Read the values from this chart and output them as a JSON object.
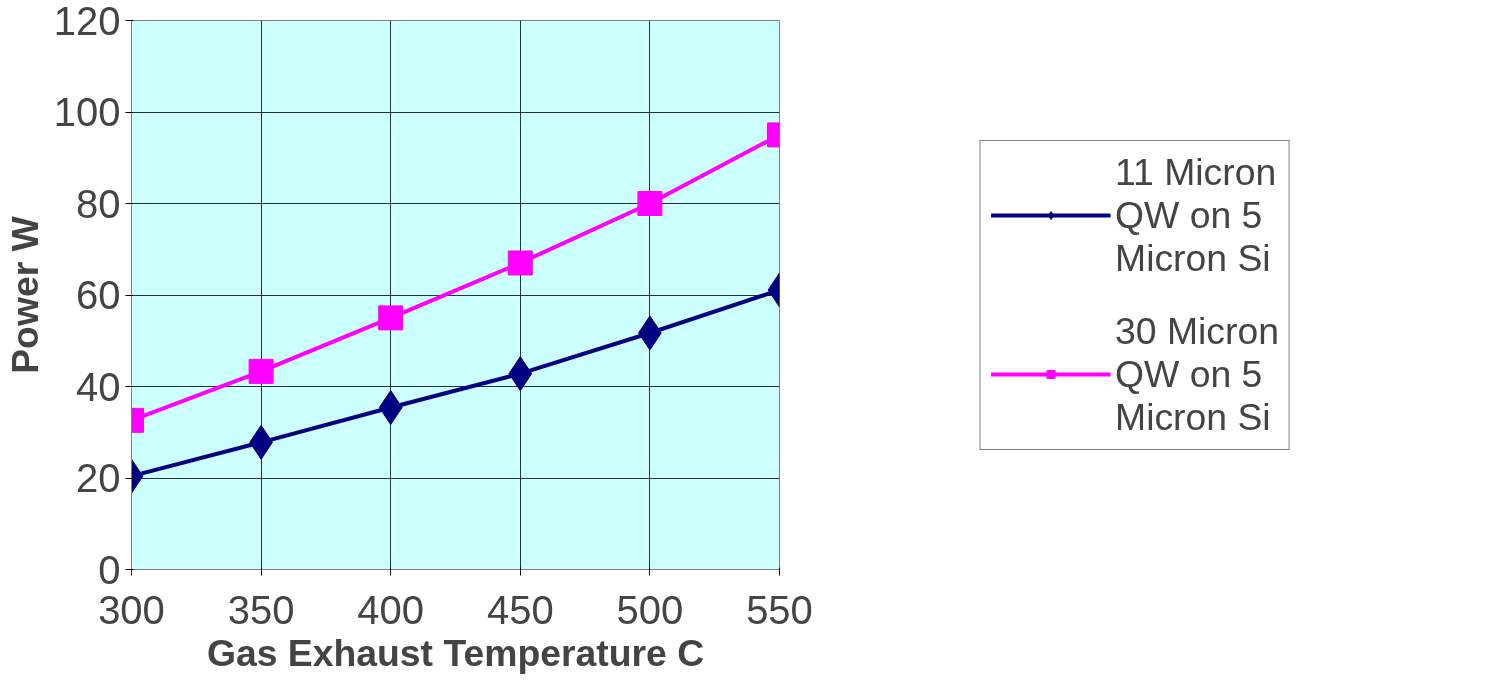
{
  "chart_data": {
    "type": "line",
    "xlabel": "Gas Exhaust Temperature C",
    "ylabel": "Power W",
    "x": [
      300,
      350,
      400,
      450,
      500,
      550
    ],
    "series": [
      {
        "name": "11 Micron QW on 5 Micron Si",
        "color": "#000080",
        "marker": "diamond",
        "values": [
          20.4,
          27.8,
          35.4,
          42.8,
          51.7,
          61.1
        ]
      },
      {
        "name": "30 Micron QW on 5 Micron Si",
        "color": "#ff00ff",
        "marker": "square",
        "values": [
          32.6,
          43.3,
          55.0,
          67.0,
          80.0,
          95.0
        ]
      }
    ],
    "xlim": [
      300,
      550
    ],
    "ylim": [
      0,
      120
    ],
    "xticks": [
      300,
      350,
      400,
      450,
      500,
      550
    ],
    "yticks": [
      0,
      20,
      40,
      60,
      80,
      100,
      120
    ],
    "grid": true,
    "legend": "right",
    "line_style": "solid"
  }
}
